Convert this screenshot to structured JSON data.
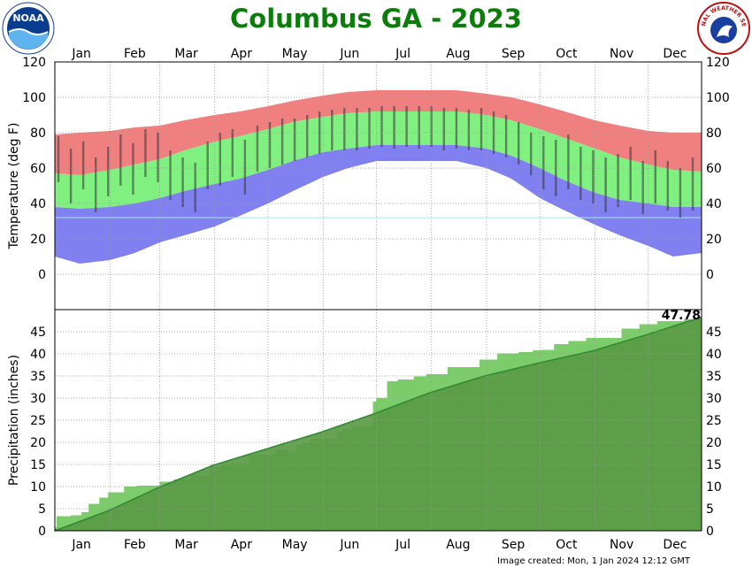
{
  "header": {
    "title": "Columbus GA - 2023",
    "noaa_logo_text": "NOAA",
    "nws_logo_text": "NATIONAL WEATHER SERVICE"
  },
  "footer": {
    "created": "Image created: Mon, 1 Jan 2024 12:12 GMT"
  },
  "colors": {
    "record_band": "#f08080",
    "normal_band": "#80f080",
    "low_band": "#8080f0",
    "observed_bar": "#333333",
    "freeze_line": "#a0e8f0",
    "precip_normal": "#5a9a46",
    "precip_normal_line": "#2f8a2f",
    "precip_observed": "#7ccc6c",
    "title": "#0b7d0b"
  },
  "chart_data": [
    {
      "type": "area",
      "panel": "temperature",
      "ylabel": "Temperature (deg F)",
      "ylim": [
        -20,
        120
      ],
      "yticks": [
        0,
        20,
        40,
        60,
        80,
        100,
        120
      ],
      "months": [
        "Jan",
        "Feb",
        "Mar",
        "Apr",
        "May",
        "Jun",
        "Jul",
        "Aug",
        "Sep",
        "Oct",
        "Nov",
        "Dec"
      ],
      "grid": true,
      "freeze_line": 32,
      "series": [
        {
          "x": [
            1,
            15,
            32,
            46,
            60,
            74,
            91,
            105,
            121,
            135,
            152,
            166,
            182,
            196,
            213,
            227,
            244,
            258,
            274,
            288,
            305,
            319,
            335,
            349,
            365
          ],
          "values": [
            79,
            80,
            81,
            83,
            84,
            87,
            90,
            92,
            95,
            98,
            101,
            103,
            104,
            104,
            104,
            104,
            102,
            100,
            96,
            92,
            87,
            84,
            81,
            80,
            80
          ]
        },
        {
          "x": [
            1,
            15,
            32,
            46,
            60,
            74,
            91,
            105,
            121,
            135,
            152,
            166,
            182,
            196,
            213,
            227,
            244,
            258,
            274,
            288,
            305,
            319,
            335,
            349,
            365
          ],
          "values": [
            57,
            56,
            59,
            62,
            65,
            70,
            75,
            78,
            82,
            86,
            89,
            91,
            92,
            92,
            92,
            92,
            90,
            87,
            82,
            77,
            71,
            66,
            62,
            59,
            58
          ]
        },
        {
          "x": [
            1,
            15,
            32,
            46,
            60,
            74,
            91,
            105,
            121,
            135,
            152,
            166,
            182,
            196,
            213,
            227,
            244,
            258,
            274,
            288,
            305,
            319,
            335,
            349,
            365
          ],
          "values": [
            38,
            37,
            38,
            40,
            43,
            47,
            51,
            54,
            59,
            64,
            69,
            71,
            73,
            73,
            73,
            73,
            71,
            67,
            60,
            53,
            46,
            42,
            40,
            38,
            38
          ]
        },
        {
          "x": [
            1,
            15,
            32,
            46,
            60,
            74,
            91,
            105,
            121,
            135,
            152,
            166,
            182,
            196,
            213,
            227,
            244,
            258,
            274,
            288,
            305,
            319,
            335,
            349,
            365
          ],
          "values": [
            10,
            6,
            8,
            12,
            18,
            22,
            27,
            33,
            40,
            47,
            55,
            60,
            64,
            64,
            64,
            64,
            60,
            54,
            43,
            36,
            28,
            22,
            16,
            10,
            12
          ]
        },
        {
          "x": [
            3,
            10,
            17,
            24,
            31,
            38,
            45,
            52,
            59,
            66,
            73,
            80,
            87,
            94,
            101,
            108,
            115,
            122,
            129,
            136,
            143,
            150,
            157,
            164,
            171,
            178,
            185,
            192,
            199,
            206,
            213,
            220,
            227,
            234,
            241,
            248,
            255,
            262,
            269,
            276,
            283,
            290,
            297,
            304,
            311,
            318,
            325,
            332,
            339,
            346,
            353,
            360
          ],
          "values": [
            [
              52,
              78
            ],
            [
              40,
              71
            ],
            [
              48,
              75
            ],
            [
              35,
              66
            ],
            [
              44,
              72
            ],
            [
              50,
              79
            ],
            [
              45,
              74
            ],
            [
              55,
              82
            ],
            [
              52,
              80
            ],
            [
              42,
              70
            ],
            [
              38,
              66
            ],
            [
              35,
              63
            ],
            [
              48,
              75
            ],
            [
              50,
              80
            ],
            [
              55,
              82
            ],
            [
              45,
              76
            ],
            [
              58,
              84
            ],
            [
              60,
              86
            ],
            [
              62,
              88
            ],
            [
              64,
              88
            ],
            [
              66,
              90
            ],
            [
              68,
              92
            ],
            [
              70,
              93
            ],
            [
              70,
              94
            ],
            [
              70,
              94
            ],
            [
              71,
              94
            ],
            [
              72,
              95
            ],
            [
              71,
              95
            ],
            [
              72,
              95
            ],
            [
              71,
              95
            ],
            [
              72,
              95
            ],
            [
              70,
              94
            ],
            [
              71,
              94
            ],
            [
              70,
              93
            ],
            [
              70,
              94
            ],
            [
              68,
              92
            ],
            [
              66,
              90
            ],
            [
              62,
              86
            ],
            [
              56,
              80
            ],
            [
              48,
              78
            ],
            [
              44,
              76
            ],
            [
              48,
              79
            ],
            [
              42,
              72
            ],
            [
              40,
              70
            ],
            [
              35,
              66
            ],
            [
              38,
              68
            ],
            [
              42,
              72
            ],
            [
              34,
              64
            ],
            [
              40,
              70
            ],
            [
              36,
              64
            ],
            [
              32,
              60
            ],
            [
              36,
              66
            ]
          ]
        }
      ]
    },
    {
      "type": "area",
      "panel": "precipitation",
      "ylabel": "Precipitation (inches)",
      "ylim": [
        0,
        50
      ],
      "yticks": [
        0,
        5,
        10,
        15,
        20,
        25,
        30,
        35,
        40,
        45
      ],
      "months": [
        "Jan",
        "Feb",
        "Mar",
        "Apr",
        "May",
        "Jun",
        "Jul",
        "Aug",
        "Sep",
        "Oct",
        "Nov",
        "Dec"
      ],
      "grid": true,
      "annotation": "47.78",
      "series": [
        {
          "x": [
            1,
            31,
            59,
            90,
            120,
            151,
            181,
            212,
            243,
            273,
            304,
            334,
            365
          ],
          "values": [
            0,
            4.5,
            9.7,
            14.8,
            18.5,
            22.3,
            26.5,
            31.2,
            35.0,
            37.9,
            40.7,
            44.3,
            48.3
          ]
        },
        {
          "x": [
            1,
            2,
            10,
            16,
            20,
            26,
            31,
            40,
            47,
            60,
            68,
            77,
            88,
            95,
            110,
            125,
            132,
            137,
            140,
            145,
            160,
            163,
            168,
            180,
            182,
            188,
            194,
            203,
            210,
            222,
            240,
            250,
            262,
            270,
            275,
            282,
            290,
            300,
            320,
            330,
            340,
            355,
            365
          ],
          "values": [
            0.8,
            3.3,
            3.5,
            4.2,
            6.1,
            7.5,
            8.7,
            10.0,
            10.2,
            11.1,
            11.6,
            12.5,
            14.5,
            15.3,
            17.2,
            18.3,
            17.7,
            19.4,
            20.0,
            20.8,
            22.3,
            22.9,
            23.5,
            29.2,
            30.0,
            33.8,
            34.2,
            34.9,
            35.4,
            37.0,
            38.7,
            40.1,
            40.4,
            40.8,
            40.9,
            42.2,
            42.9,
            43.6,
            45.7,
            46.7,
            47.4,
            47.8,
            47.78
          ]
        }
      ]
    }
  ]
}
